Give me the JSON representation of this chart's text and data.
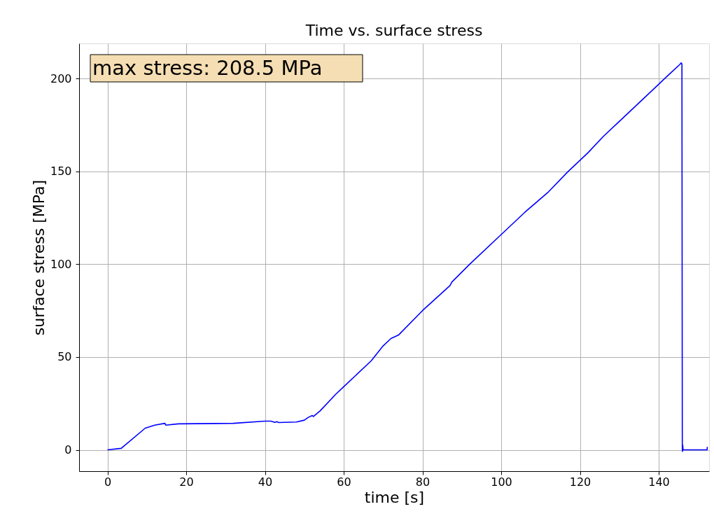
{
  "chart_data": {
    "type": "line",
    "title": "Time vs. surface stress",
    "xlabel": "time [s]",
    "ylabel": "surface stress [MPa]",
    "annotations": [
      "max stress: 208.5 MPa"
    ],
    "series": [
      {
        "color": "#0000ff",
        "x": [
          0,
          3.5,
          9.6,
          12,
          14.6,
          14.8,
          18,
          32,
          40,
          41.5,
          42.5,
          43,
          43.5,
          48,
          50,
          51,
          52,
          52.3,
          54,
          58,
          60,
          67,
          70,
          72,
          74,
          80,
          87,
          87.5,
          92,
          100,
          106,
          112,
          117,
          118,
          122,
          126,
          130,
          140,
          140.5,
          143,
          145.3,
          145.7,
          145.9,
          146.0,
          146.05,
          146.1,
          146.2,
          152.3,
          152.35
        ],
        "values": [
          0,
          0.8,
          11.7,
          13.3,
          14.3,
          13.3,
          14,
          14.3,
          15.5,
          15.5,
          14.8,
          15.2,
          14.7,
          15,
          16,
          17.5,
          18.5,
          18,
          21,
          30,
          34,
          48,
          56,
          60,
          62,
          75,
          88.5,
          90.5,
          100,
          116,
          128,
          139,
          150,
          152,
          160,
          169,
          177,
          197,
          198,
          203,
          207.5,
          208.5,
          208,
          0,
          -0.8,
          2.5,
          0,
          0,
          1.6
        ]
      }
    ],
    "xlim": [
      -7.2,
      152.8
    ],
    "ylim": [
      -11.5,
      219
    ],
    "xticks": [
      0,
      20,
      40,
      60,
      80,
      100,
      120,
      140
    ],
    "yticks": [
      0,
      50,
      100,
      150,
      200
    ],
    "grid": true,
    "marker": "none",
    "line_style": "solid"
  }
}
